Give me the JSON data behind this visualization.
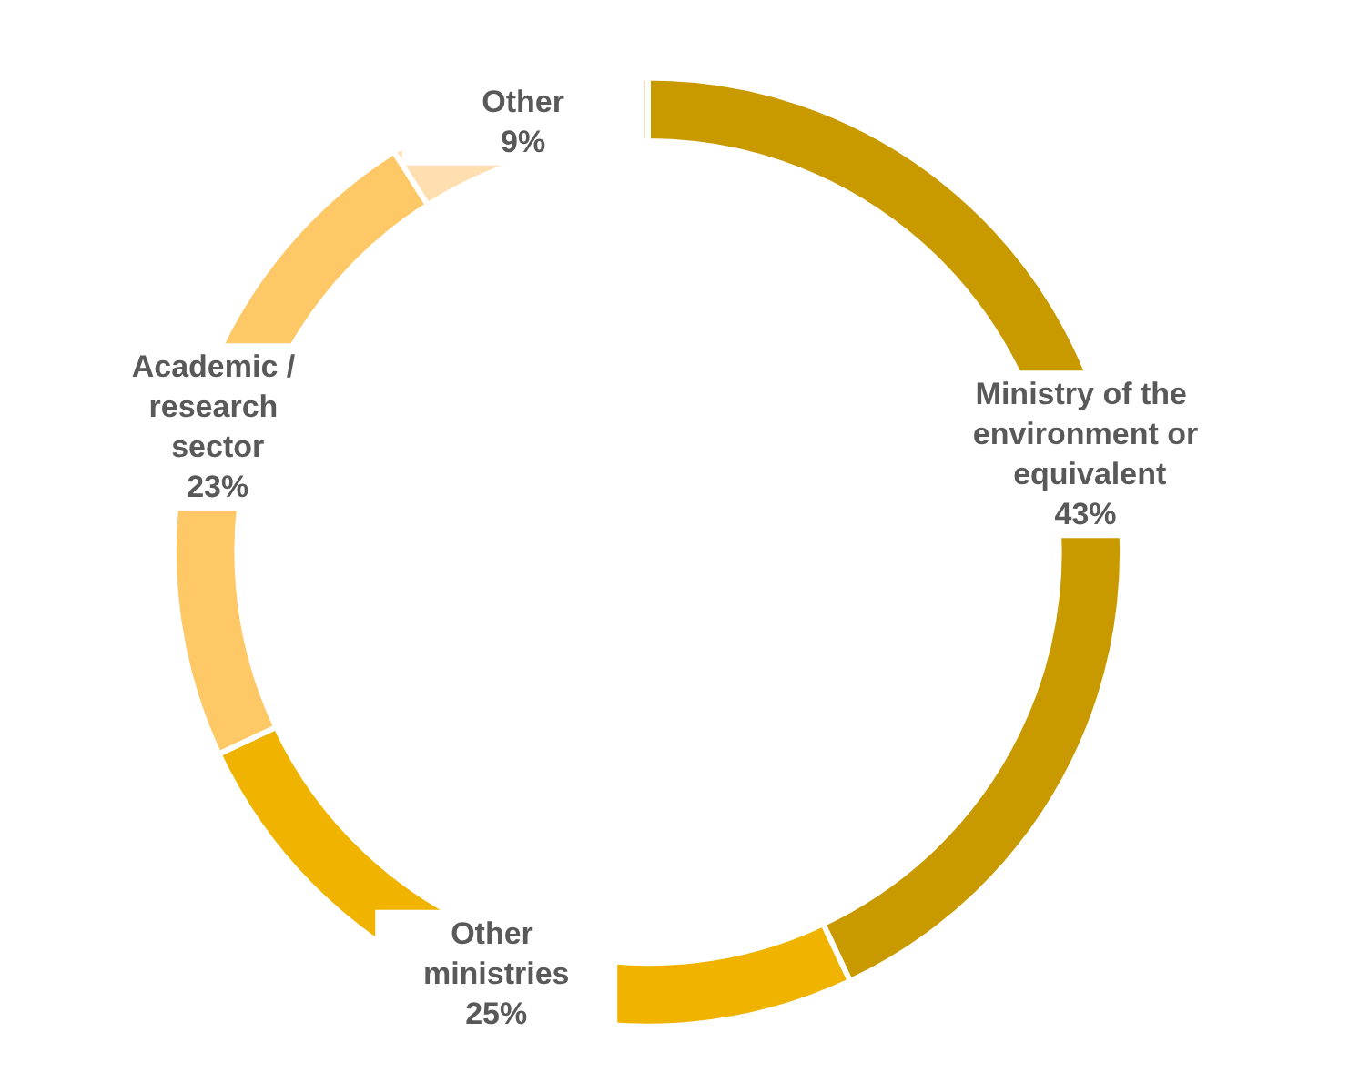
{
  "chart_data": {
    "type": "donut",
    "categories": [
      "Ministry of the environment or equivalent",
      "Other ministries",
      "Academic / research sector",
      "Other"
    ],
    "values": [
      43,
      25,
      23,
      9
    ],
    "colors": [
      "#c99a00",
      "#f0b400",
      "#ffc866",
      "#ffdfb0"
    ],
    "value_labels": [
      "43%",
      "25%",
      "23%",
      "9%"
    ],
    "legend": false
  }
}
